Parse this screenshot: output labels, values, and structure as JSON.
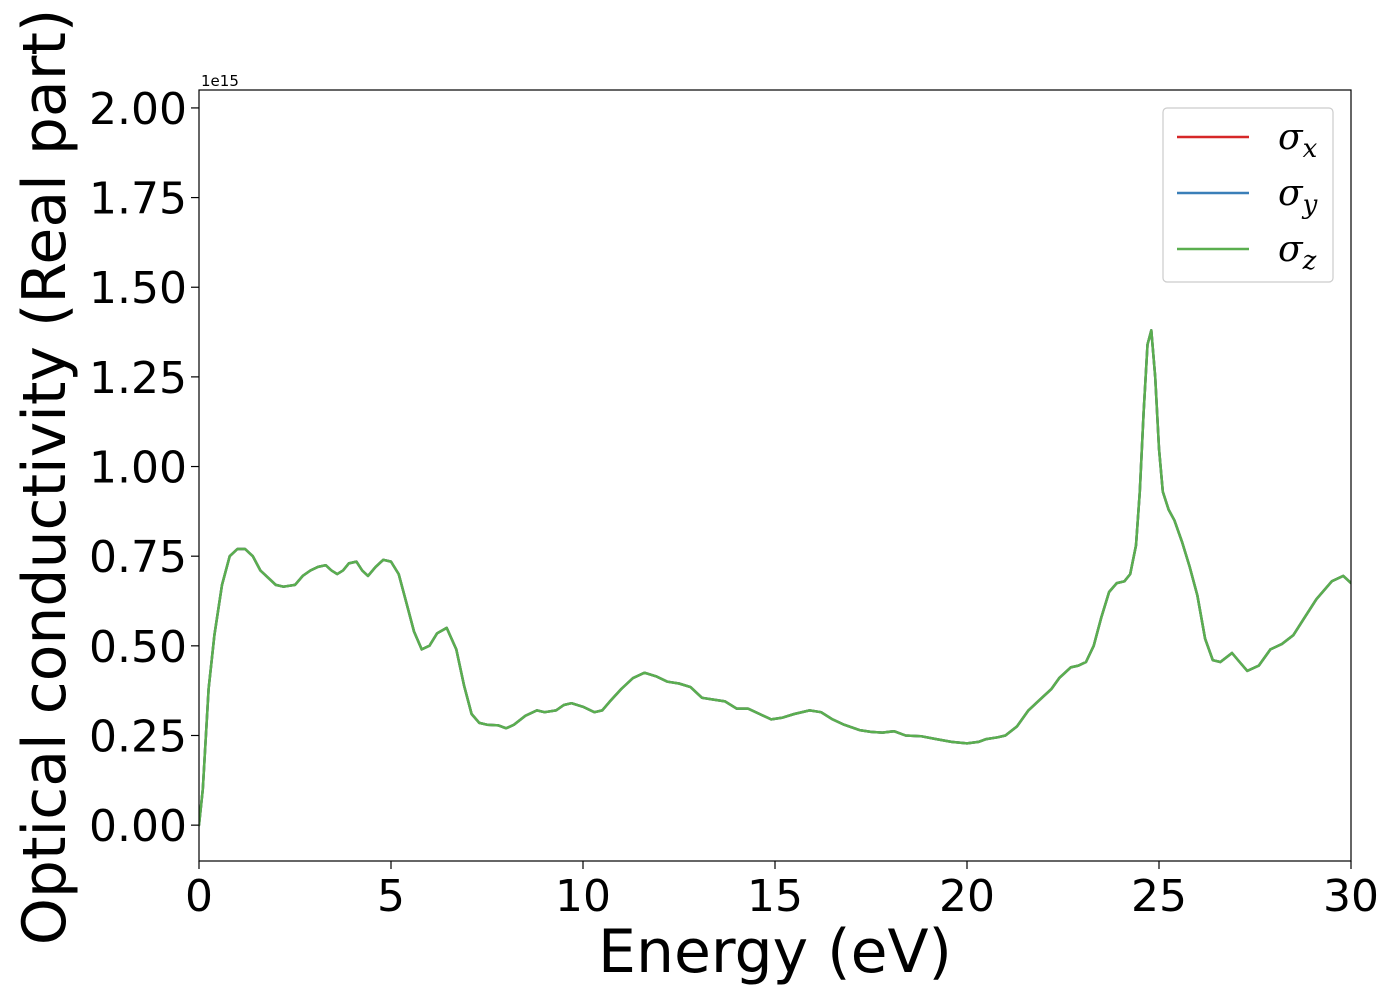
{
  "chart_data": {
    "type": "line",
    "xlabel": "Energy (eV)",
    "ylabel": "Optical conductivity (Real part)",
    "y_offset_label": "1e15",
    "xlim": [
      0,
      30
    ],
    "ylim": [
      -0.1,
      2.05
    ],
    "x_ticks": [
      0,
      5,
      10,
      15,
      20,
      25,
      30
    ],
    "y_ticks": [
      0.0,
      0.25,
      0.5,
      0.75,
      1.0,
      1.25,
      1.5,
      1.75,
      2.0
    ],
    "x_tick_labels": [
      "0",
      "5",
      "10",
      "15",
      "20",
      "25",
      "30"
    ],
    "y_tick_labels": [
      "0.00",
      "0.25",
      "0.50",
      "0.75",
      "1.00",
      "1.25",
      "1.50",
      "1.75",
      "2.00"
    ],
    "grid": false,
    "legend_position": "top-right",
    "x": [
      0,
      0.1,
      0.25,
      0.4,
      0.6,
      0.8,
      1.0,
      1.2,
      1.4,
      1.6,
      1.8,
      2.0,
      2.2,
      2.5,
      2.7,
      2.9,
      3.1,
      3.3,
      3.45,
      3.6,
      3.75,
      3.9,
      4.1,
      4.25,
      4.4,
      4.6,
      4.8,
      5.0,
      5.2,
      5.4,
      5.6,
      5.8,
      6.0,
      6.2,
      6.45,
      6.7,
      6.9,
      7.1,
      7.3,
      7.5,
      7.8,
      8.0,
      8.2,
      8.5,
      8.8,
      9.0,
      9.3,
      9.5,
      9.7,
      10.0,
      10.3,
      10.5,
      10.7,
      11.0,
      11.3,
      11.6,
      11.9,
      12.2,
      12.5,
      12.8,
      13.1,
      13.4,
      13.7,
      14.0,
      14.3,
      14.6,
      14.9,
      15.2,
      15.5,
      15.9,
      16.2,
      16.5,
      16.8,
      17.2,
      17.5,
      17.8,
      18.1,
      18.4,
      18.8,
      19.2,
      19.6,
      20.0,
      20.3,
      20.5,
      20.8,
      21.0,
      21.3,
      21.6,
      21.9,
      22.2,
      22.4,
      22.7,
      22.9,
      23.1,
      23.3,
      23.5,
      23.7,
      23.9,
      24.1,
      24.25,
      24.4,
      24.5,
      24.6,
      24.7,
      24.8,
      24.9,
      25.0,
      25.1,
      25.25,
      25.4,
      25.6,
      25.8,
      26.0,
      26.2,
      26.4,
      26.6,
      26.9,
      27.1,
      27.3,
      27.6,
      27.9,
      28.2,
      28.5,
      28.8,
      29.1,
      29.5,
      29.8,
      30.0
    ],
    "series": [
      {
        "name": "σx",
        "label_base": "σ",
        "label_sub": "x",
        "color": "#d62728",
        "values": [
          0.0,
          0.1,
          0.38,
          0.53,
          0.67,
          0.75,
          0.77,
          0.77,
          0.75,
          0.71,
          0.69,
          0.67,
          0.665,
          0.67,
          0.695,
          0.71,
          0.72,
          0.725,
          0.71,
          0.7,
          0.71,
          0.73,
          0.735,
          0.71,
          0.695,
          0.72,
          0.74,
          0.735,
          0.7,
          0.62,
          0.54,
          0.49,
          0.5,
          0.535,
          0.55,
          0.49,
          0.39,
          0.31,
          0.285,
          0.28,
          0.278,
          0.27,
          0.28,
          0.305,
          0.32,
          0.315,
          0.32,
          0.335,
          0.34,
          0.33,
          0.315,
          0.32,
          0.345,
          0.38,
          0.41,
          0.425,
          0.415,
          0.4,
          0.395,
          0.385,
          0.355,
          0.35,
          0.345,
          0.325,
          0.325,
          0.31,
          0.295,
          0.3,
          0.31,
          0.32,
          0.315,
          0.295,
          0.28,
          0.265,
          0.26,
          0.258,
          0.262,
          0.25,
          0.248,
          0.24,
          0.232,
          0.228,
          0.232,
          0.24,
          0.245,
          0.25,
          0.275,
          0.32,
          0.35,
          0.38,
          0.41,
          0.44,
          0.445,
          0.455,
          0.5,
          0.58,
          0.65,
          0.675,
          0.68,
          0.7,
          0.78,
          0.93,
          1.15,
          1.34,
          1.38,
          1.25,
          1.05,
          0.93,
          0.88,
          0.85,
          0.79,
          0.72,
          0.64,
          0.52,
          0.46,
          0.455,
          0.48,
          0.455,
          0.43,
          0.445,
          0.49,
          0.505,
          0.53,
          0.58,
          0.63,
          0.68,
          0.695,
          0.675
        ]
      },
      {
        "name": "σy",
        "label_base": "σ",
        "label_sub": "y",
        "color": "#3a7fb8",
        "values": [
          0.0,
          0.1,
          0.38,
          0.53,
          0.67,
          0.75,
          0.77,
          0.77,
          0.75,
          0.71,
          0.69,
          0.67,
          0.665,
          0.67,
          0.695,
          0.71,
          0.72,
          0.725,
          0.71,
          0.7,
          0.71,
          0.73,
          0.735,
          0.71,
          0.695,
          0.72,
          0.74,
          0.735,
          0.7,
          0.62,
          0.54,
          0.49,
          0.5,
          0.535,
          0.55,
          0.49,
          0.39,
          0.31,
          0.285,
          0.28,
          0.278,
          0.27,
          0.28,
          0.305,
          0.32,
          0.315,
          0.32,
          0.335,
          0.34,
          0.33,
          0.315,
          0.32,
          0.345,
          0.38,
          0.41,
          0.425,
          0.415,
          0.4,
          0.395,
          0.385,
          0.355,
          0.35,
          0.345,
          0.325,
          0.325,
          0.31,
          0.295,
          0.3,
          0.31,
          0.32,
          0.315,
          0.295,
          0.28,
          0.265,
          0.26,
          0.258,
          0.262,
          0.25,
          0.248,
          0.24,
          0.232,
          0.228,
          0.232,
          0.24,
          0.245,
          0.25,
          0.275,
          0.32,
          0.35,
          0.38,
          0.41,
          0.44,
          0.445,
          0.455,
          0.5,
          0.58,
          0.65,
          0.675,
          0.68,
          0.7,
          0.78,
          0.93,
          1.15,
          1.34,
          1.38,
          1.25,
          1.05,
          0.93,
          0.88,
          0.85,
          0.79,
          0.72,
          0.64,
          0.52,
          0.46,
          0.455,
          0.48,
          0.455,
          0.43,
          0.445,
          0.49,
          0.505,
          0.53,
          0.58,
          0.63,
          0.68,
          0.695,
          0.675
        ]
      },
      {
        "name": "σz",
        "label_base": "σ",
        "label_sub": "z",
        "color": "#5aae4f",
        "values": [
          0.0,
          0.1,
          0.38,
          0.53,
          0.67,
          0.75,
          0.77,
          0.77,
          0.75,
          0.71,
          0.69,
          0.67,
          0.665,
          0.67,
          0.695,
          0.71,
          0.72,
          0.725,
          0.71,
          0.7,
          0.71,
          0.73,
          0.735,
          0.71,
          0.695,
          0.72,
          0.74,
          0.735,
          0.7,
          0.62,
          0.54,
          0.49,
          0.5,
          0.535,
          0.55,
          0.49,
          0.39,
          0.31,
          0.285,
          0.28,
          0.278,
          0.27,
          0.28,
          0.305,
          0.32,
          0.315,
          0.32,
          0.335,
          0.34,
          0.33,
          0.315,
          0.32,
          0.345,
          0.38,
          0.41,
          0.425,
          0.415,
          0.4,
          0.395,
          0.385,
          0.355,
          0.35,
          0.345,
          0.325,
          0.325,
          0.31,
          0.295,
          0.3,
          0.31,
          0.32,
          0.315,
          0.295,
          0.28,
          0.265,
          0.26,
          0.258,
          0.262,
          0.25,
          0.248,
          0.24,
          0.232,
          0.228,
          0.232,
          0.24,
          0.245,
          0.25,
          0.275,
          0.32,
          0.35,
          0.38,
          0.41,
          0.44,
          0.445,
          0.455,
          0.5,
          0.58,
          0.65,
          0.675,
          0.68,
          0.7,
          0.78,
          0.93,
          1.15,
          1.34,
          1.38,
          1.25,
          1.05,
          0.93,
          0.88,
          0.85,
          0.79,
          0.72,
          0.64,
          0.52,
          0.46,
          0.455,
          0.48,
          0.455,
          0.43,
          0.445,
          0.49,
          0.505,
          0.53,
          0.58,
          0.63,
          0.68,
          0.695,
          0.675
        ]
      }
    ]
  }
}
